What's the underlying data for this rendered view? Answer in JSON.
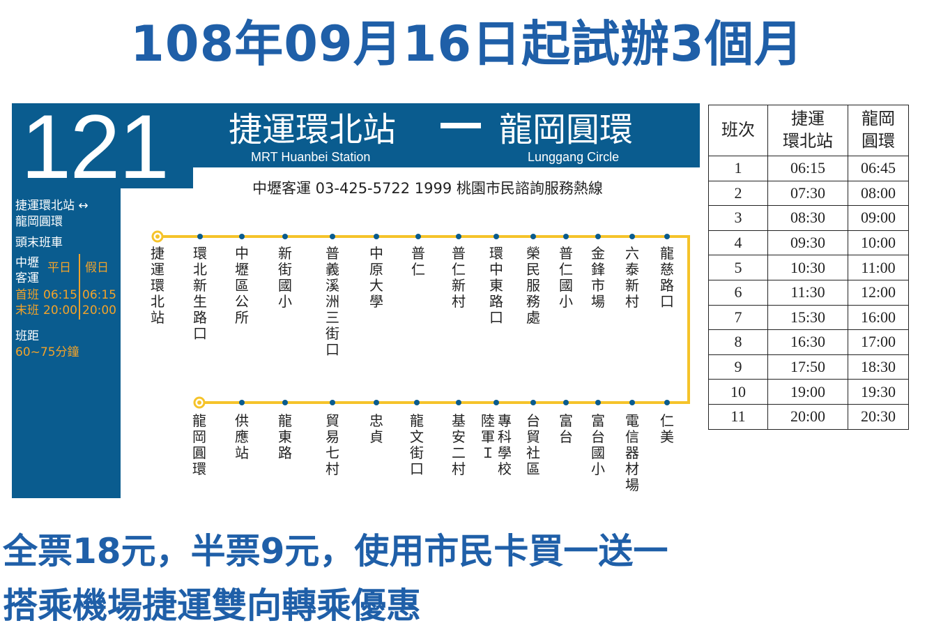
{
  "headline": "108年09月16日起試辦3個月",
  "route": {
    "number": "121",
    "from_zh": "捷運環北站",
    "to_zh": "龍岡圓環",
    "from_en": "MRT  Huanbei Station",
    "to_en": "Lunggang Circle",
    "contact": "中壢客運 03-425-5722   1999 桃園市民諮詢服務熱線"
  },
  "sidebar": {
    "route_line1": "捷運環北站 ↔",
    "route_line2": "龍岡圓環",
    "first_last_title": "頭末班車",
    "operator_line1": "中壢",
    "operator_line2": "客運",
    "weekday_label": "平日",
    "holiday_label": "假日",
    "first_label": "首班",
    "first_weekday": "06:15",
    "first_holiday": "06:15",
    "last_label": "末班",
    "last_weekday": "20:00",
    "last_holiday": "20:00",
    "headway_label": "班距",
    "headway_value": "60~75分鐘"
  },
  "stops_outbound": [
    "捷運環北站",
    "環北新生路口",
    "中壢區公所",
    "新街國小",
    "普義溪洲三街口",
    "中原大學",
    "普仁",
    "普仁新村",
    "環中東路口",
    "榮民服務處",
    "普仁國小",
    "金鋒市場",
    "六泰新村",
    "龍慈路口"
  ],
  "stops_return": [
    "龍岡圓環",
    "供應站",
    "龍東路",
    "貿易七村",
    "忠貞",
    "龍文街口",
    "基安二村",
    "陸軍Ｉ",
    "專科學校",
    "台貿社區",
    "富台",
    "富台國小",
    "電信器材場",
    "仁美"
  ],
  "colors": {
    "brand_blue": "#0a5c8f",
    "headline_blue": "#1f5fa8",
    "route_line": "#f5c32a",
    "accent_orange": "#f2a32a"
  },
  "schedule": {
    "headers": [
      "班次",
      "捷運環北站",
      "龍岡圓環"
    ],
    "rows": [
      [
        "1",
        "06:15",
        "06:45"
      ],
      [
        "2",
        "07:30",
        "08:00"
      ],
      [
        "3",
        "08:30",
        "09:00"
      ],
      [
        "4",
        "09:30",
        "10:00"
      ],
      [
        "5",
        "10:30",
        "11:00"
      ],
      [
        "6",
        "11:30",
        "12:00"
      ],
      [
        "7",
        "15:30",
        "16:00"
      ],
      [
        "8",
        "16:30",
        "17:00"
      ],
      [
        "9",
        "17:50",
        "18:30"
      ],
      [
        "10",
        "19:00",
        "19:30"
      ],
      [
        "11",
        "20:00",
        "20:30"
      ]
    ]
  },
  "fare": "全票18元，半票9元，使用市民卡買一送一",
  "transfer": "搭乘機場捷運雙向轉乘優惠"
}
